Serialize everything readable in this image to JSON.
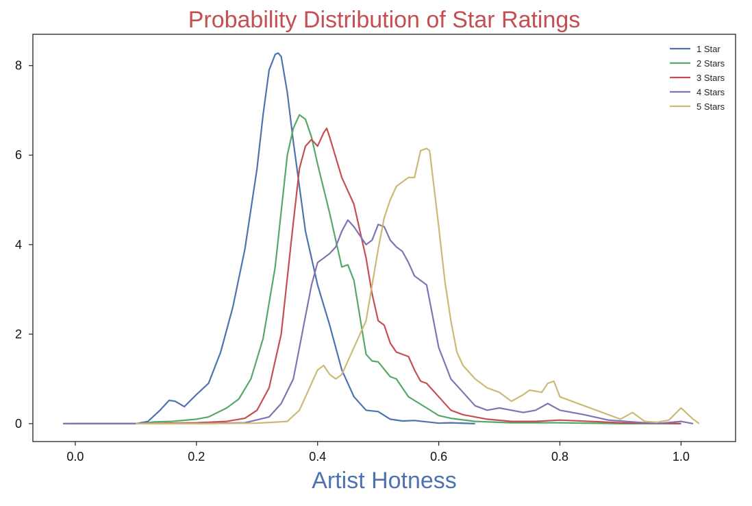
{
  "chart_data": {
    "type": "line",
    "title": "Probability Distribution of Star Ratings",
    "xlabel": "Artist Hotness",
    "ylabel": "",
    "xlim": [
      -0.07,
      1.09
    ],
    "ylim": [
      -0.4,
      8.7
    ],
    "xticks": [
      "0.0",
      "0.2",
      "0.4",
      "0.6",
      "0.8",
      "1.0"
    ],
    "yticks": [
      "0",
      "2",
      "4",
      "6",
      "8"
    ],
    "grid": false,
    "legend_position": "top-right",
    "series": [
      {
        "name": "1 Star",
        "color": "#4c72b0",
        "x": [
          -0.02,
          0.0,
          0.05,
          0.1,
          0.12,
          0.14,
          0.155,
          0.165,
          0.18,
          0.2,
          0.22,
          0.24,
          0.26,
          0.28,
          0.3,
          0.31,
          0.32,
          0.33,
          0.335,
          0.34,
          0.35,
          0.36,
          0.38,
          0.4,
          0.42,
          0.44,
          0.46,
          0.48,
          0.5,
          0.52,
          0.54,
          0.56,
          0.6,
          0.62,
          0.66
        ],
        "y": [
          0,
          0,
          0,
          0,
          0.05,
          0.3,
          0.52,
          0.5,
          0.38,
          0.65,
          0.9,
          1.6,
          2.6,
          3.9,
          5.7,
          6.9,
          7.9,
          8.25,
          8.28,
          8.2,
          7.4,
          6.3,
          4.3,
          3.1,
          2.2,
          1.2,
          0.6,
          0.3,
          0.27,
          0.1,
          0.06,
          0.07,
          0.01,
          0.02,
          0.0
        ]
      },
      {
        "name": "2 Stars",
        "color": "#55a868",
        "x": [
          0.11,
          0.13,
          0.16,
          0.2,
          0.22,
          0.25,
          0.27,
          0.29,
          0.31,
          0.33,
          0.35,
          0.36,
          0.37,
          0.38,
          0.39,
          0.4,
          0.42,
          0.44,
          0.45,
          0.46,
          0.48,
          0.49,
          0.5,
          0.52,
          0.53,
          0.55,
          0.58,
          0.6,
          0.62,
          0.66,
          0.72,
          0.8,
          0.9,
          1.0
        ],
        "y": [
          0,
          0.04,
          0.05,
          0.1,
          0.15,
          0.35,
          0.55,
          1.0,
          1.9,
          3.5,
          6.0,
          6.6,
          6.9,
          6.8,
          6.4,
          5.8,
          4.7,
          3.5,
          3.55,
          3.2,
          1.55,
          1.4,
          1.38,
          1.05,
          1.0,
          0.6,
          0.35,
          0.18,
          0.12,
          0.05,
          0.02,
          0.02,
          0.0,
          0.0
        ]
      },
      {
        "name": "3 Stars",
        "color": "#c44e52",
        "x": [
          0.0,
          0.1,
          0.2,
          0.25,
          0.28,
          0.3,
          0.32,
          0.34,
          0.36,
          0.37,
          0.38,
          0.39,
          0.4,
          0.41,
          0.415,
          0.42,
          0.44,
          0.46,
          0.48,
          0.49,
          0.5,
          0.51,
          0.52,
          0.53,
          0.55,
          0.56,
          0.57,
          0.58,
          0.6,
          0.62,
          0.64,
          0.68,
          0.72,
          0.76,
          0.8,
          0.9,
          1.0
        ],
        "y": [
          0,
          0,
          0.02,
          0.05,
          0.12,
          0.3,
          0.8,
          2.0,
          4.5,
          5.7,
          6.2,
          6.35,
          6.2,
          6.5,
          6.6,
          6.4,
          5.5,
          4.9,
          3.7,
          2.9,
          2.3,
          2.2,
          1.8,
          1.6,
          1.5,
          1.2,
          0.95,
          0.9,
          0.6,
          0.3,
          0.2,
          0.1,
          0.05,
          0.05,
          0.08,
          0.02,
          0.0
        ]
      },
      {
        "name": "4 Stars",
        "color": "#8172b2",
        "x": [
          -0.02,
          0.1,
          0.2,
          0.28,
          0.32,
          0.34,
          0.36,
          0.37,
          0.38,
          0.39,
          0.4,
          0.41,
          0.42,
          0.43,
          0.44,
          0.45,
          0.46,
          0.47,
          0.48,
          0.49,
          0.5,
          0.51,
          0.52,
          0.53,
          0.54,
          0.55,
          0.56,
          0.57,
          0.58,
          0.6,
          0.62,
          0.64,
          0.66,
          0.68,
          0.7,
          0.72,
          0.74,
          0.76,
          0.78,
          0.8,
          0.84,
          0.88,
          0.92,
          0.96,
          1.0,
          1.02
        ],
        "y": [
          0,
          0,
          0,
          0.02,
          0.15,
          0.45,
          1.0,
          1.7,
          2.4,
          3.1,
          3.6,
          3.7,
          3.8,
          3.95,
          4.3,
          4.55,
          4.4,
          4.2,
          4.0,
          4.1,
          4.45,
          4.4,
          4.1,
          3.95,
          3.85,
          3.6,
          3.3,
          3.2,
          3.1,
          1.7,
          1.0,
          0.7,
          0.4,
          0.3,
          0.35,
          0.3,
          0.25,
          0.3,
          0.45,
          0.3,
          0.2,
          0.08,
          0.04,
          0.0,
          0.05,
          0.0
        ]
      },
      {
        "name": "5 Stars",
        "color": "#ccb974",
        "x": [
          0.1,
          0.2,
          0.3,
          0.35,
          0.37,
          0.39,
          0.4,
          0.41,
          0.42,
          0.43,
          0.44,
          0.46,
          0.48,
          0.5,
          0.51,
          0.52,
          0.53,
          0.54,
          0.55,
          0.56,
          0.57,
          0.58,
          0.585,
          0.6,
          0.61,
          0.62,
          0.63,
          0.64,
          0.66,
          0.68,
          0.7,
          0.72,
          0.74,
          0.75,
          0.77,
          0.78,
          0.79,
          0.8,
          0.82,
          0.84,
          0.88,
          0.9,
          0.92,
          0.94,
          0.96,
          0.98,
          1.0,
          1.02,
          1.03
        ],
        "y": [
          0,
          0,
          0.01,
          0.05,
          0.3,
          0.9,
          1.2,
          1.3,
          1.1,
          1.0,
          1.1,
          1.7,
          2.3,
          3.9,
          4.6,
          5.0,
          5.3,
          5.4,
          5.5,
          5.5,
          6.1,
          6.15,
          6.1,
          4.4,
          3.2,
          2.3,
          1.6,
          1.3,
          1.0,
          0.8,
          0.7,
          0.5,
          0.65,
          0.75,
          0.7,
          0.9,
          0.95,
          0.6,
          0.5,
          0.4,
          0.2,
          0.1,
          0.25,
          0.05,
          0.03,
          0.08,
          0.35,
          0.1,
          0.0
        ]
      }
    ]
  }
}
